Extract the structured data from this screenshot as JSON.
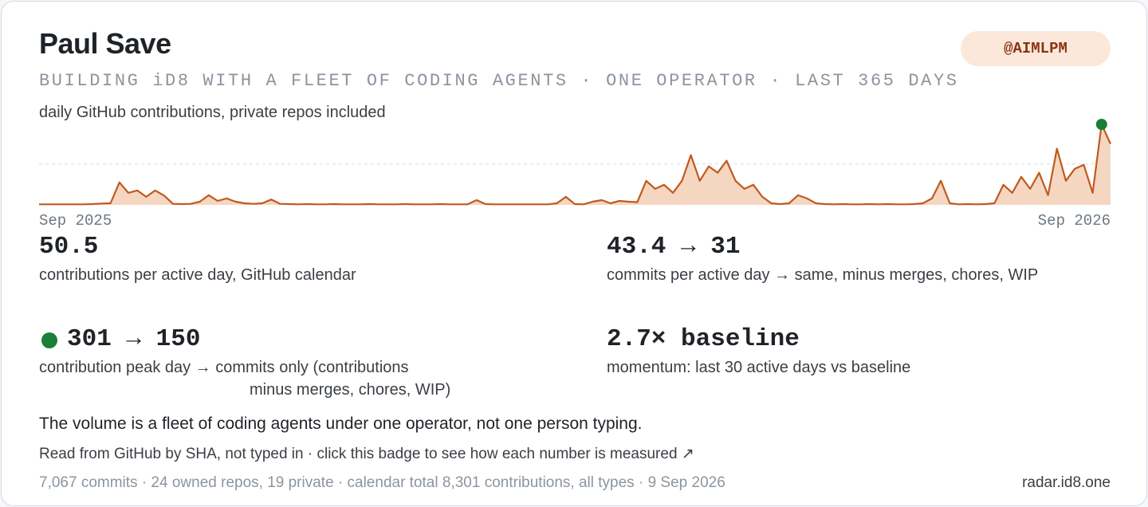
{
  "header": {
    "name": "Paul Save",
    "handle": "@AIMLPM",
    "tagline": "BUILDING iD8 WITH A FLEET OF CODING AGENTS · ONE OPERATOR · LAST 365 DAYS",
    "subtitle": "daily GitHub contributions, private repos included"
  },
  "chart_data": {
    "type": "area",
    "color": "#bf5a1f",
    "fill": "#f5d6c1",
    "peak_color": "#1a7f37",
    "xlim": [
      0,
      120
    ],
    "xticks": [
      {
        "value": 0,
        "label": "Sep 2025"
      },
      {
        "value": 120,
        "label": "Sep 2026"
      }
    ],
    "ylim": [
      0,
      301
    ],
    "ref_value": 153,
    "values": [
      2,
      2,
      2,
      2,
      2,
      2,
      3,
      5,
      6,
      84,
      45,
      54,
      30,
      54,
      35,
      4,
      3,
      4,
      12,
      36,
      15,
      24,
      12,
      6,
      4,
      6,
      20,
      4,
      3,
      2,
      3,
      2,
      2,
      3,
      2,
      2,
      2,
      3,
      2,
      2,
      2,
      3,
      2,
      2,
      2,
      3,
      2,
      2,
      2,
      18,
      3,
      2,
      2,
      2,
      2,
      2,
      2,
      2,
      6,
      30,
      3,
      2,
      12,
      18,
      6,
      15,
      12,
      10,
      90,
      60,
      75,
      45,
      90,
      186,
      90,
      144,
      120,
      165,
      90,
      60,
      75,
      30,
      6,
      3,
      6,
      36,
      24,
      6,
      3,
      2,
      3,
      2,
      2,
      3,
      2,
      3,
      2,
      2,
      3,
      6,
      24,
      90,
      6,
      2,
      3,
      2,
      3,
      6,
      75,
      45,
      105,
      60,
      120,
      36,
      210,
      90,
      135,
      150,
      45,
      301,
      228
    ]
  },
  "stats": [
    {
      "value": "50.5",
      "label": "contributions per active day, GitHub calendar"
    },
    {
      "value": "43.4 → 31",
      "label": "commits per active day → same, minus merges, chores, WIP"
    },
    {
      "value": "301 → 150",
      "label": "contribution peak day → commits only (contributions",
      "label_cont": "minus merges, chores, WIP)"
    },
    {
      "value": "2.7× baseline",
      "label": "momentum: last 30 active days vs baseline"
    }
  ],
  "footer": {
    "note": "The volume is a fleet of coding agents under one operator, not one person typing.",
    "source": "Read from GitHub by SHA, not typed in · click this badge to see how each number is measured ↗",
    "meta": "7,067 commits · 24 owned repos, 19 private · calendar total 8,301 contributions, all types · 9 Sep 2026",
    "domain": "radar.id8.one"
  }
}
